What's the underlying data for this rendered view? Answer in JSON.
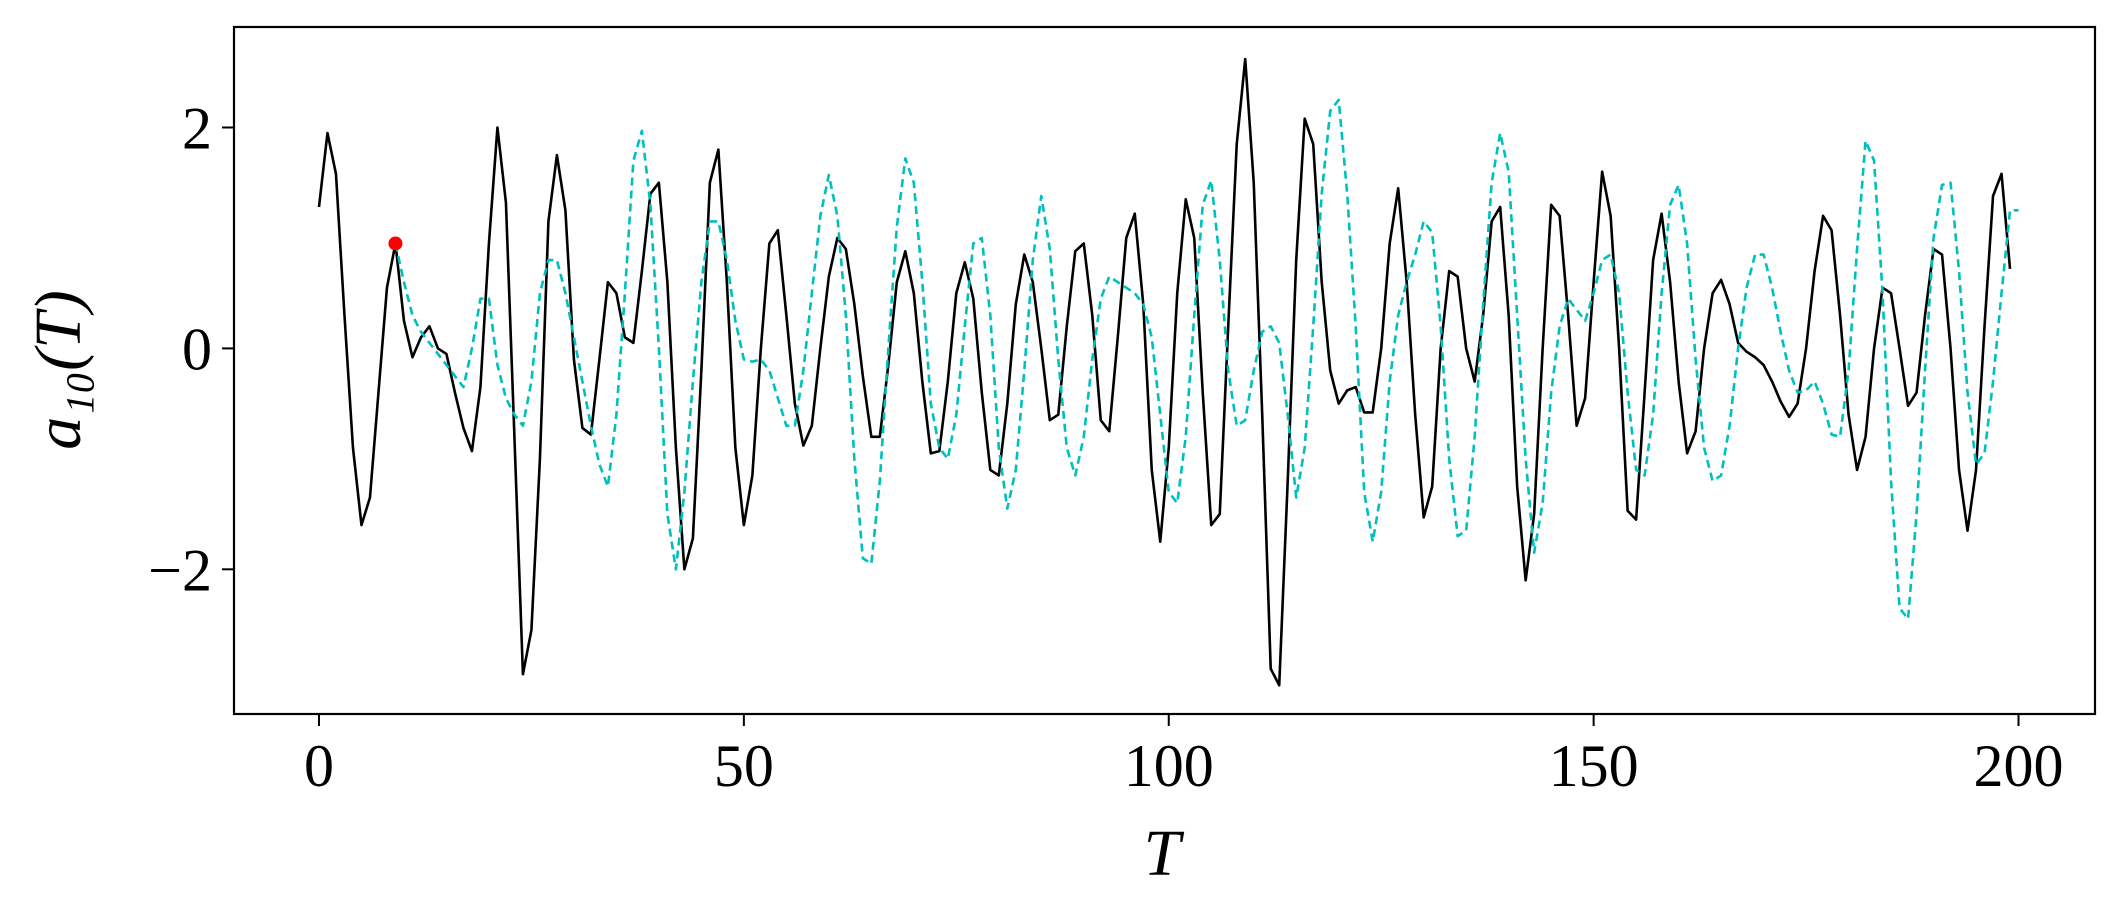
{
  "chart_data": {
    "type": "line",
    "xlabel": "T",
    "ylabel": "a₁₀(T)",
    "x": [
      0,
      1,
      2,
      3,
      4,
      5,
      6,
      7,
      8,
      9,
      10,
      11,
      12,
      13,
      14,
      15,
      16,
      17,
      18,
      19,
      20,
      21,
      22,
      23,
      24,
      25,
      26,
      27,
      28,
      29,
      30,
      31,
      32,
      33,
      34,
      35,
      36,
      37,
      38,
      39,
      40,
      41,
      42,
      43,
      44,
      45,
      46,
      47,
      48,
      49,
      50,
      51,
      52,
      53,
      54,
      55,
      56,
      57,
      58,
      59,
      60,
      61,
      62,
      63,
      64,
      65,
      66,
      67,
      68,
      69,
      70,
      71,
      72,
      73,
      74,
      75,
      76,
      77,
      78,
      79,
      80,
      81,
      82,
      83,
      84,
      85,
      86,
      87,
      88,
      89,
      90,
      91,
      92,
      93,
      94,
      95,
      96,
      97,
      98,
      99,
      100,
      101,
      102,
      103,
      104,
      105,
      106,
      107,
      108,
      109,
      110,
      111,
      112,
      113,
      114,
      115,
      116,
      117,
      118,
      119,
      120,
      121,
      122,
      123,
      124,
      125,
      126,
      127,
      128,
      129,
      130,
      131,
      132,
      133,
      134,
      135,
      136,
      137,
      138,
      139,
      140,
      141,
      142,
      143,
      144,
      145,
      146,
      147,
      148,
      149,
      150,
      151,
      152,
      153,
      154,
      155,
      156,
      157,
      158,
      159,
      160,
      161,
      162,
      163,
      164,
      165,
      166,
      167,
      168,
      169,
      170,
      171,
      172,
      173,
      174,
      175,
      176,
      177,
      178,
      179,
      180,
      181,
      182,
      183,
      184,
      185,
      186,
      187,
      188,
      189,
      190,
      191,
      192,
      193,
      194,
      195,
      196,
      197,
      198,
      199,
      200
    ],
    "series": [
      {
        "color": "#000000",
        "dash": false,
        "values": [
          1.28,
          1.95,
          1.58,
          0.3,
          -0.9,
          -1.6,
          -1.35,
          -0.4,
          0.55,
          0.95,
          0.25,
          -0.08,
          0.1,
          0.2,
          0.0,
          -0.05,
          -0.4,
          -0.72,
          -0.93,
          -0.35,
          0.95,
          2.0,
          1.32,
          -0.8,
          -2.95,
          -2.55,
          -1.0,
          1.15,
          1.75,
          1.25,
          -0.1,
          -0.72,
          -0.78,
          -0.1,
          0.6,
          0.5,
          0.1,
          0.05,
          0.7,
          1.4,
          1.5,
          0.6,
          -0.9,
          -2.0,
          -1.72,
          -0.2,
          1.5,
          1.8,
          0.6,
          -0.9,
          -1.6,
          -1.15,
          0.0,
          0.95,
          1.07,
          0.3,
          -0.5,
          -0.88,
          -0.7,
          0.0,
          0.65,
          1.0,
          0.9,
          0.4,
          -0.25,
          -0.8,
          -0.8,
          -0.15,
          0.6,
          0.88,
          0.5,
          -0.3,
          -0.95,
          -0.93,
          -0.3,
          0.5,
          0.78,
          0.45,
          -0.4,
          -1.1,
          -1.15,
          -0.5,
          0.4,
          0.85,
          0.6,
          0.0,
          -0.65,
          -0.6,
          0.2,
          0.88,
          0.95,
          0.3,
          -0.65,
          -0.75,
          0.1,
          1.0,
          1.22,
          0.4,
          -1.1,
          -1.75,
          -0.9,
          0.5,
          1.35,
          1.0,
          -0.4,
          -1.6,
          -1.5,
          0.2,
          1.85,
          2.62,
          1.5,
          -0.6,
          -2.9,
          -3.05,
          -1.2,
          0.8,
          2.08,
          1.85,
          0.6,
          -0.2,
          -0.5,
          -0.38,
          -0.35,
          -0.58,
          -0.58,
          0.0,
          0.95,
          1.45,
          0.6,
          -0.6,
          -1.53,
          -1.25,
          0.0,
          0.7,
          0.65,
          0.0,
          -0.3,
          0.3,
          1.15,
          1.28,
          0.3,
          -1.25,
          -2.1,
          -1.5,
          0.0,
          1.3,
          1.2,
          0.3,
          -0.7,
          -0.45,
          0.6,
          1.6,
          1.2,
          0.0,
          -1.47,
          -1.55,
          -0.4,
          0.8,
          1.22,
          0.6,
          -0.3,
          -0.95,
          -0.75,
          0.0,
          0.5,
          0.62,
          0.4,
          0.05,
          -0.03,
          -0.08,
          -0.15,
          -0.3,
          -0.48,
          -0.62,
          -0.5,
          0.0,
          0.7,
          1.2,
          1.07,
          0.3,
          -0.6,
          -1.1,
          -0.8,
          0.0,
          0.55,
          0.5,
          0.0,
          -0.52,
          -0.4,
          0.3,
          0.9,
          0.85,
          0.0,
          -1.1,
          -1.65,
          -1.1,
          0.2,
          1.38,
          1.58,
          0.72,
          null
        ]
      },
      {
        "color": "#00bfbf",
        "dash": true,
        "values": [
          null,
          null,
          null,
          null,
          null,
          null,
          null,
          null,
          null,
          0.95,
          0.6,
          0.3,
          0.15,
          0.05,
          -0.05,
          -0.15,
          -0.25,
          -0.35,
          0.0,
          0.45,
          0.45,
          -0.15,
          -0.45,
          -0.6,
          -0.7,
          -0.3,
          0.5,
          0.8,
          0.8,
          0.5,
          0.1,
          -0.3,
          -0.7,
          -1.05,
          -1.25,
          -0.6,
          0.5,
          1.7,
          1.97,
          1.3,
          0.0,
          -1.5,
          -2.0,
          -1.3,
          -0.3,
          0.6,
          1.15,
          1.15,
          0.8,
          0.25,
          -0.1,
          -0.12,
          -0.1,
          -0.2,
          -0.45,
          -0.7,
          -0.7,
          -0.2,
          0.5,
          1.2,
          1.57,
          1.2,
          0.3,
          -1.0,
          -1.9,
          -1.95,
          -1.2,
          0.0,
          1.1,
          1.72,
          1.5,
          0.6,
          -0.5,
          -0.9,
          -1.0,
          -0.6,
          0.2,
          0.95,
          1.0,
          0.3,
          -0.9,
          -1.45,
          -1.1,
          -0.2,
          0.8,
          1.38,
          0.9,
          -0.1,
          -0.9,
          -1.15,
          -0.8,
          -0.1,
          0.45,
          0.65,
          0.6,
          0.55,
          0.5,
          0.4,
          0.1,
          -0.6,
          -1.3,
          -1.4,
          -0.8,
          0.3,
          1.3,
          1.52,
          0.8,
          -0.2,
          -0.7,
          -0.65,
          -0.2,
          0.15,
          0.2,
          0.05,
          -0.6,
          -1.35,
          -0.9,
          0.2,
          1.4,
          2.15,
          2.25,
          1.4,
          0.2,
          -1.3,
          -1.75,
          -1.3,
          -0.3,
          0.3,
          0.6,
          0.85,
          1.15,
          1.05,
          0.2,
          -1.0,
          -1.7,
          -1.65,
          -0.8,
          0.4,
          1.5,
          1.95,
          1.6,
          0.3,
          -1.0,
          -1.85,
          -1.4,
          -0.4,
          0.2,
          0.45,
          0.35,
          0.25,
          0.5,
          0.8,
          0.85,
          0.5,
          -0.4,
          -1.1,
          -1.15,
          -0.6,
          0.5,
          1.3,
          1.48,
          0.95,
          -0.1,
          -0.9,
          -1.2,
          -1.15,
          -0.7,
          0.0,
          0.55,
          0.85,
          0.85,
          0.55,
          0.15,
          -0.2,
          -0.4,
          -0.38,
          -0.3,
          -0.5,
          -0.78,
          -0.8,
          -0.2,
          0.9,
          1.88,
          1.7,
          0.5,
          -1.2,
          -2.35,
          -2.45,
          -1.5,
          -0.2,
          1.0,
          1.48,
          1.5,
          0.7,
          -0.4,
          -1.05,
          -0.95,
          -0.3,
          0.5,
          1.25,
          1.25
        ]
      }
    ],
    "marker": {
      "x": 9,
      "y": 0.95,
      "color": "#ff0000"
    },
    "xlim": [
      -10,
      209
    ],
    "ylim": [
      -3.31,
      2.91
    ],
    "xticks": [
      0,
      50,
      100,
      150,
      200
    ],
    "yticks": [
      {
        "value": -2,
        "label": "−2"
      },
      0,
      2
    ]
  }
}
